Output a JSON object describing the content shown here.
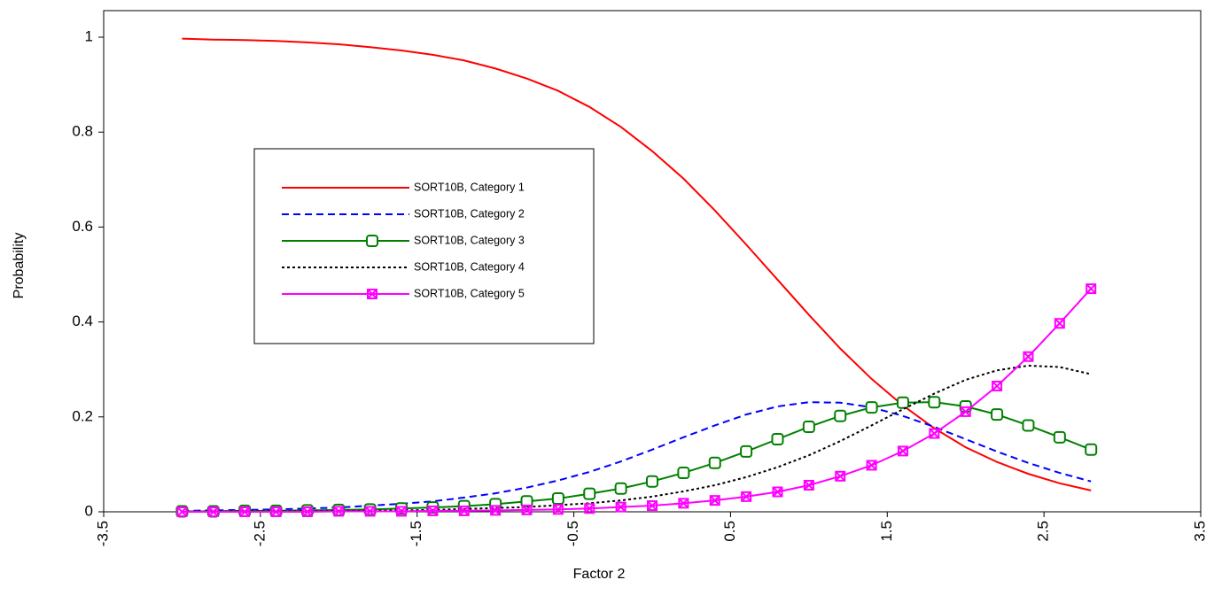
{
  "chart_data": {
    "type": "line",
    "xlabel": "Factor 2",
    "ylabel": "Probability",
    "x": [
      -3,
      -2.8,
      -2.6,
      -2.4,
      -2.2,
      -2,
      -1.8,
      -1.6,
      -1.4,
      -1.2,
      -1,
      -0.8,
      -0.6,
      -0.4,
      -0.2,
      0,
      0.2,
      0.4,
      0.6,
      0.8,
      1,
      1.2,
      1.4,
      1.6,
      1.8,
      2,
      2.2,
      2.4,
      2.6,
      2.8
    ],
    "series": [
      {
        "name": "SORT10B, Category 1",
        "color": "#ff0000",
        "dash": "solid",
        "marker": "none",
        "values": [
          0.997,
          0.995,
          0.994,
          0.992,
          0.989,
          0.985,
          0.979,
          0.972,
          0.963,
          0.951,
          0.934,
          0.913,
          0.887,
          0.853,
          0.811,
          0.76,
          0.702,
          0.635,
          0.563,
          0.489,
          0.415,
          0.344,
          0.28,
          0.224,
          0.176,
          0.136,
          0.105,
          0.08,
          0.06,
          0.045
        ]
      },
      {
        "name": "SORT10B, Category 2",
        "color": "#0000ff",
        "dash": "dashed",
        "marker": "none",
        "values": [
          0.002,
          0.003,
          0.004,
          0.005,
          0.007,
          0.009,
          0.013,
          0.017,
          0.022,
          0.03,
          0.039,
          0.051,
          0.066,
          0.084,
          0.106,
          0.131,
          0.157,
          0.182,
          0.205,
          0.222,
          0.231,
          0.23,
          0.22,
          0.202,
          0.179,
          0.153,
          0.127,
          0.103,
          0.082,
          0.064
        ]
      },
      {
        "name": "SORT10B, Category 3",
        "color": "#008000",
        "dash": "solid",
        "marker": "square",
        "values": [
          0.001,
          0.001,
          0.002,
          0.002,
          0.003,
          0.004,
          0.005,
          0.007,
          0.009,
          0.012,
          0.016,
          0.022,
          0.028,
          0.038,
          0.049,
          0.064,
          0.082,
          0.103,
          0.127,
          0.153,
          0.179,
          0.202,
          0.22,
          0.23,
          0.231,
          0.222,
          0.205,
          0.182,
          0.157,
          0.131
        ]
      },
      {
        "name": "SORT10B, Category 4",
        "color": "#000000",
        "dash": "dotted",
        "marker": "none",
        "values": [
          0.0,
          0.001,
          0.001,
          0.001,
          0.001,
          0.002,
          0.002,
          0.003,
          0.004,
          0.006,
          0.008,
          0.01,
          0.014,
          0.018,
          0.024,
          0.032,
          0.043,
          0.056,
          0.073,
          0.094,
          0.119,
          0.149,
          0.182,
          0.216,
          0.249,
          0.278,
          0.298,
          0.308,
          0.305,
          0.29
        ]
      },
      {
        "name": "SORT10B, Category 5",
        "color": "#ff00ff",
        "dash": "solid",
        "marker": "x-square",
        "values": [
          0.0,
          0.0,
          0.0,
          0.0,
          0.0,
          0.001,
          0.001,
          0.001,
          0.002,
          0.002,
          0.003,
          0.004,
          0.005,
          0.007,
          0.01,
          0.013,
          0.018,
          0.024,
          0.032,
          0.042,
          0.056,
          0.075,
          0.098,
          0.128,
          0.165,
          0.211,
          0.265,
          0.327,
          0.397,
          0.47
        ]
      }
    ],
    "xlim": [
      -3.5,
      3.5
    ],
    "xticks": [
      -3.5,
      -2.5,
      -1.5,
      -0.5,
      0.5,
      1.5,
      2.5,
      3.5
    ],
    "ylim": [
      0,
      1.056
    ],
    "yticks": [
      0,
      0.2,
      0.4,
      0.6,
      0.8,
      1
    ],
    "grid": false,
    "legend": "center left"
  }
}
